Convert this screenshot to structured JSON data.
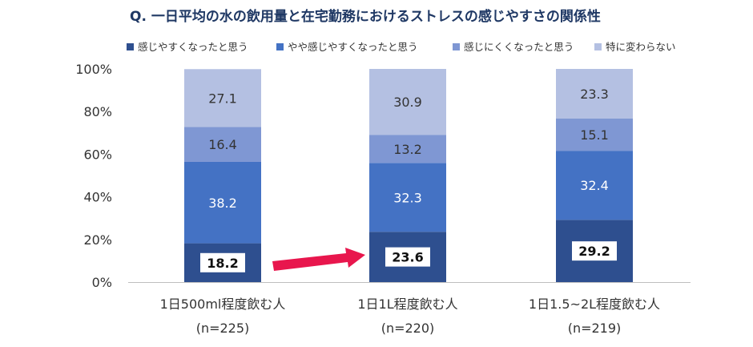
{
  "chart_data": {
    "type": "bar",
    "stacked": true,
    "title": "Q. 一日平均の水の飲用量と在宅勤務におけるストレスの感じやすさの関係性",
    "categories": [
      "1日500ml程度飲む人",
      "1日1L程度飲む人",
      "1日1.5~2L程度飲む人"
    ],
    "category_n": [
      "(n=225)",
      "(n=220)",
      "(n=219)"
    ],
    "series": [
      {
        "name": "感じやすくなったと思う",
        "values": [
          18.2,
          23.6,
          29.2
        ],
        "color": "#2e4f8f"
      },
      {
        "name": "やや感じやすくなったと思う",
        "values": [
          38.2,
          32.3,
          32.4
        ],
        "color": "#4472c4"
      },
      {
        "name": "感じにくくなったと思う",
        "values": [
          16.4,
          13.2,
          15.1
        ],
        "color": "#7f97d3"
      },
      {
        "name": "特に変わらない",
        "values": [
          27.1,
          30.9,
          23.3
        ],
        "color": "#b4c0e2"
      }
    ],
    "ylim": [
      0,
      100
    ],
    "y_ticks": [
      "0%",
      "20%",
      "40%",
      "60%",
      "80%",
      "100%"
    ],
    "legend_position": "top",
    "grid": false,
    "highlight_series": 0,
    "arrow": {
      "from_category": 0,
      "to_category": 1,
      "color": "#e8164d"
    }
  }
}
